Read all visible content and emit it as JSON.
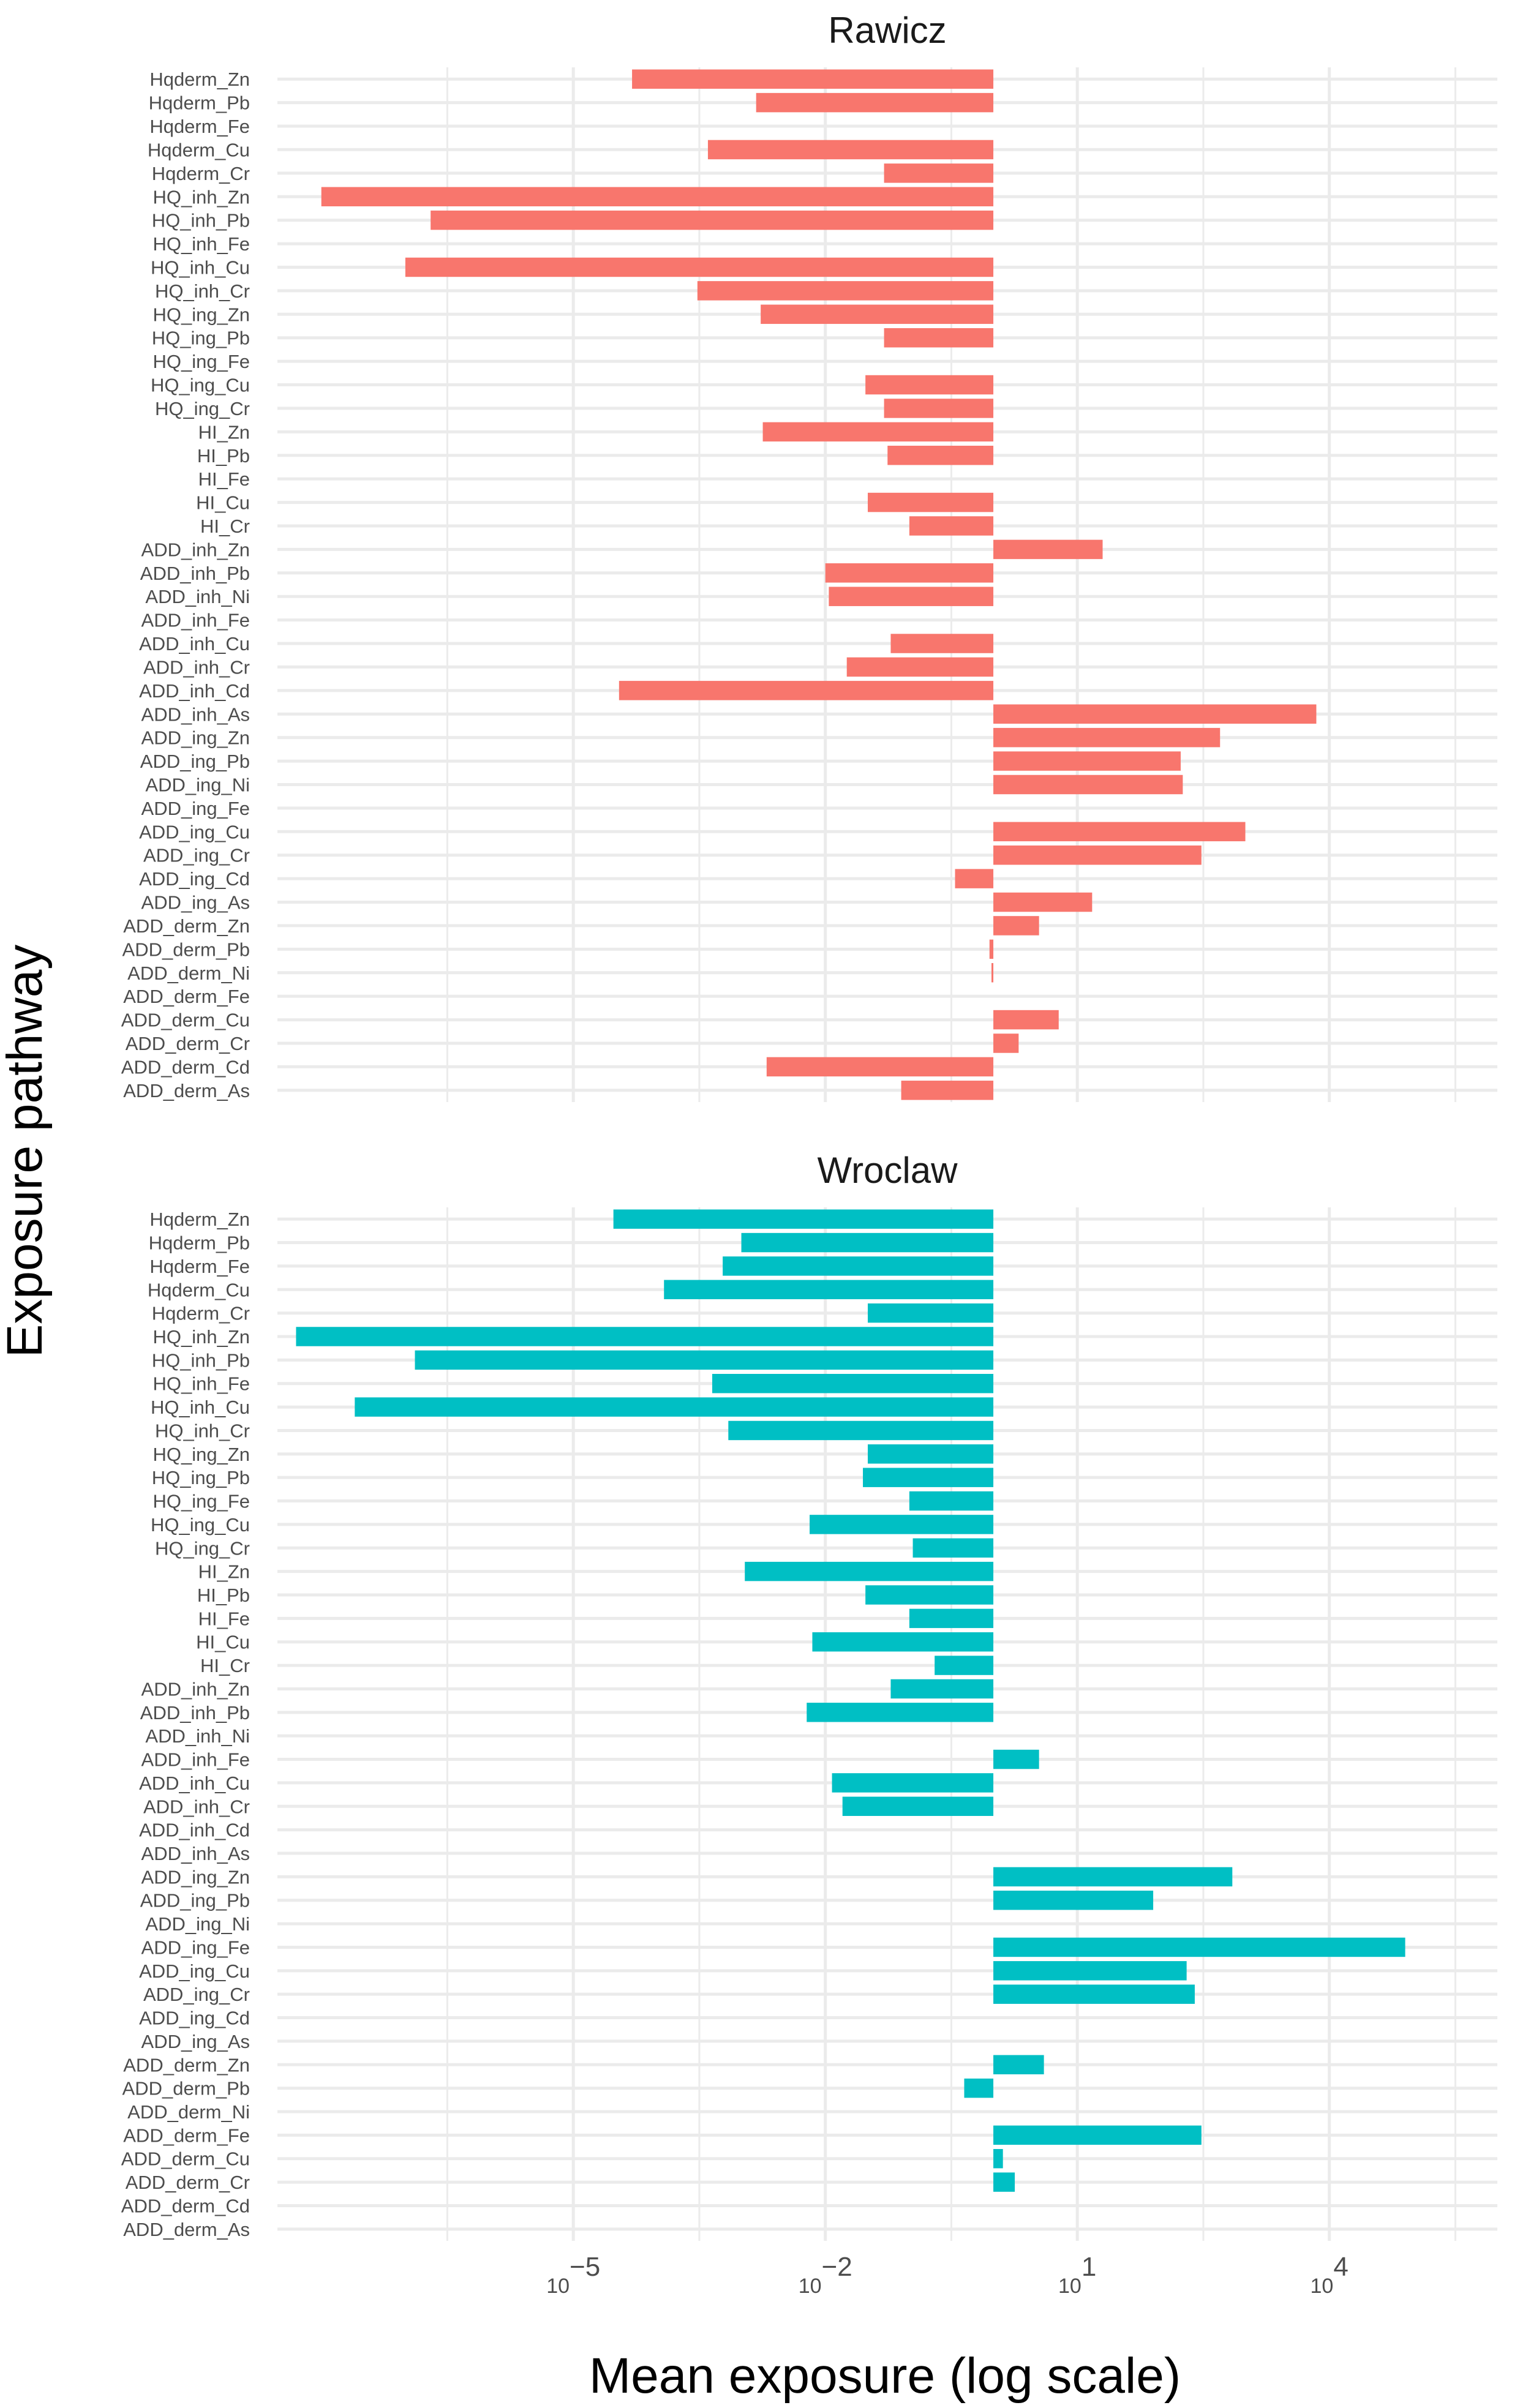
{
  "chart_data": {
    "type": "bar",
    "orientation": "horizontal",
    "scale": "log10",
    "xlabel": "Mean exposure (log scale)",
    "ylabel": "Exposure pathway",
    "x_ticks": [
      {
        "value": 1e-05,
        "base": "10",
        "exp": "−5"
      },
      {
        "value": 0.01,
        "base": "10",
        "exp": "−2"
      },
      {
        "value": 10,
        "base": "10",
        "exp": "1"
      },
      {
        "value": 10000,
        "base": "10",
        "exp": "4"
      }
    ],
    "xlim": [
      3e-09,
      1000000.0
    ],
    "bar_origin": 1,
    "legend": "none",
    "panels": [
      {
        "title": "Rawicz",
        "color": "#F8766D",
        "categories": [
          "Hqderm_Zn",
          "Hqderm_Pb",
          "Hqderm_Fe",
          "Hqderm_Cu",
          "Hqderm_Cr",
          "HQ_inh_Zn",
          "HQ_inh_Pb",
          "HQ_inh_Fe",
          "HQ_inh_Cu",
          "HQ_inh_Cr",
          "HQ_ing_Zn",
          "HQ_ing_Pb",
          "HQ_ing_Fe",
          "HQ_ing_Cu",
          "HQ_ing_Cr",
          "HI_Zn",
          "HI_Pb",
          "HI_Fe",
          "HI_Cu",
          "HI_Cr",
          "ADD_inh_Zn",
          "ADD_inh_Pb",
          "ADD_inh_Ni",
          "ADD_inh_Fe",
          "ADD_inh_Cu",
          "ADD_inh_Cr",
          "ADD_inh_Cd",
          "ADD_inh_As",
          "ADD_ing_Zn",
          "ADD_ing_Pb",
          "ADD_ing_Ni",
          "ADD_ing_Fe",
          "ADD_ing_Cu",
          "ADD_ing_Cr",
          "ADD_ing_Cd",
          "ADD_ing_As",
          "ADD_derm_Zn",
          "ADD_derm_Pb",
          "ADD_derm_Ni",
          "ADD_derm_Fe",
          "ADD_derm_Cu",
          "ADD_derm_Cr",
          "ADD_derm_Cd",
          "ADD_derm_As"
        ],
        "values": [
          5e-05,
          0.0015,
          1,
          0.0004,
          0.05,
          1e-08,
          2e-07,
          1,
          1e-07,
          0.0003,
          0.0017,
          0.05,
          1,
          0.03,
          0.05,
          0.0018,
          0.055,
          1,
          0.032,
          0.1,
          20,
          0.01,
          0.011,
          1,
          0.06,
          0.018,
          3.5e-05,
          7000,
          500,
          170,
          180,
          1,
          1000,
          300,
          0.35,
          15,
          3.5,
          0.9,
          0.95,
          1,
          6,
          2,
          0.002,
          0.08
        ]
      },
      {
        "title": "Wroclaw",
        "color": "#00BFC4",
        "categories": [
          "Hqderm_Zn",
          "Hqderm_Pb",
          "Hqderm_Fe",
          "Hqderm_Cu",
          "Hqderm_Cr",
          "HQ_inh_Zn",
          "HQ_inh_Pb",
          "HQ_inh_Fe",
          "HQ_inh_Cu",
          "HQ_inh_Cr",
          "HQ_ing_Zn",
          "HQ_ing_Pb",
          "HQ_ing_Fe",
          "HQ_ing_Cu",
          "HQ_ing_Cr",
          "HI_Zn",
          "HI_Pb",
          "HI_Fe",
          "HI_Cu",
          "HI_Cr",
          "ADD_inh_Zn",
          "ADD_inh_Pb",
          "ADD_inh_Ni",
          "ADD_inh_Fe",
          "ADD_inh_Cu",
          "ADD_inh_Cr",
          "ADD_inh_Cd",
          "ADD_inh_As",
          "ADD_ing_Zn",
          "ADD_ing_Pb",
          "ADD_ing_Ni",
          "ADD_ing_Fe",
          "ADD_ing_Cu",
          "ADD_ing_Cr",
          "ADD_ing_Cd",
          "ADD_ing_As",
          "ADD_derm_Zn",
          "ADD_derm_Pb",
          "ADD_derm_Ni",
          "ADD_derm_Fe",
          "ADD_derm_Cu",
          "ADD_derm_Cr",
          "ADD_derm_Cd",
          "ADD_derm_As"
        ],
        "values": [
          3e-05,
          0.001,
          0.0006,
          0.00012,
          0.032,
          5e-09,
          1.3e-07,
          0.00045,
          2.5e-08,
          0.0007,
          0.032,
          0.028,
          0.1,
          0.0065,
          0.11,
          0.0011,
          0.03,
          0.1,
          0.007,
          0.2,
          0.06,
          0.006,
          1,
          3.5,
          0.012,
          0.016,
          1,
          1,
          700,
          80,
          1,
          80000,
          200,
          250,
          1,
          1,
          4,
          0.45,
          1,
          300,
          1.3,
          1.8,
          1,
          1
        ]
      }
    ]
  }
}
